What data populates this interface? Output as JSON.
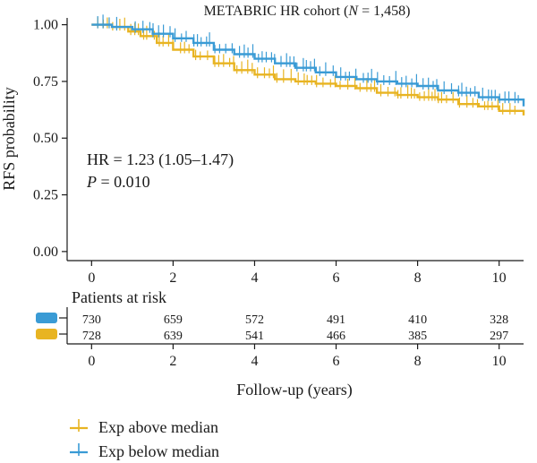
{
  "colors": {
    "above": "#E8B422",
    "below": "#3A9BD5",
    "axis": "#1a1a1a"
  },
  "chart_data": {
    "type": "line",
    "subtype": "kaplan-meier",
    "title": {
      "main": "METABRIC HR cohort (",
      "italic": "N",
      "rest": " = 1,458)"
    },
    "xlabel": "Follow-up (years)",
    "ylabel": "RFS probability",
    "xlim": [
      -0.6,
      10.6
    ],
    "ylim": [
      -0.04,
      1.03
    ],
    "x_ticks": [
      0,
      2,
      4,
      6,
      8,
      10
    ],
    "y_ticks": [
      0.0,
      0.25,
      0.5,
      0.75,
      1.0
    ],
    "y_tick_labels": [
      "0.00",
      "0.25",
      "0.50",
      "0.75",
      "1.00"
    ],
    "legend_position": "bottom-left",
    "annotations": {
      "hr": "HR = 1.23 (1.05–1.47)",
      "p_symbol": "P",
      "p_rest": " = 0.010"
    },
    "series": [
      {
        "name": "Exp above median",
        "key": "above",
        "x": [
          0,
          0.5,
          0.9,
          1.2,
          1.6,
          2.0,
          2.5,
          3.0,
          3.5,
          4.0,
          4.5,
          5.0,
          5.5,
          6.0,
          6.5,
          7.0,
          7.5,
          8.0,
          8.5,
          9.0,
          9.5,
          10.0,
          10.6
        ],
        "y": [
          1.0,
          0.99,
          0.97,
          0.95,
          0.92,
          0.89,
          0.86,
          0.83,
          0.8,
          0.78,
          0.76,
          0.75,
          0.74,
          0.73,
          0.72,
          0.7,
          0.69,
          0.68,
          0.67,
          0.65,
          0.64,
          0.62,
          0.6
        ]
      },
      {
        "name": "Exp below median",
        "key": "below",
        "x": [
          0,
          0.5,
          1.0,
          1.5,
          2.0,
          2.5,
          3.0,
          3.5,
          4.0,
          4.5,
          5.0,
          5.5,
          6.0,
          6.5,
          7.0,
          7.5,
          8.0,
          8.5,
          9.0,
          9.5,
          10.0,
          10.6
        ],
        "y": [
          1.0,
          0.99,
          0.98,
          0.96,
          0.94,
          0.92,
          0.89,
          0.87,
          0.85,
          0.83,
          0.81,
          0.79,
          0.77,
          0.76,
          0.75,
          0.74,
          0.73,
          0.71,
          0.7,
          0.68,
          0.67,
          0.64
        ]
      }
    ],
    "risk_table": {
      "title": "Patients at risk",
      "times": [
        0,
        2,
        4,
        6,
        8,
        10
      ],
      "rows": [
        {
          "key": "below",
          "counts": [
            "730",
            "659",
            "572",
            "491",
            "410",
            "328"
          ]
        },
        {
          "key": "above",
          "counts": [
            "728",
            "639",
            "541",
            "466",
            "385",
            "297"
          ]
        }
      ]
    }
  }
}
